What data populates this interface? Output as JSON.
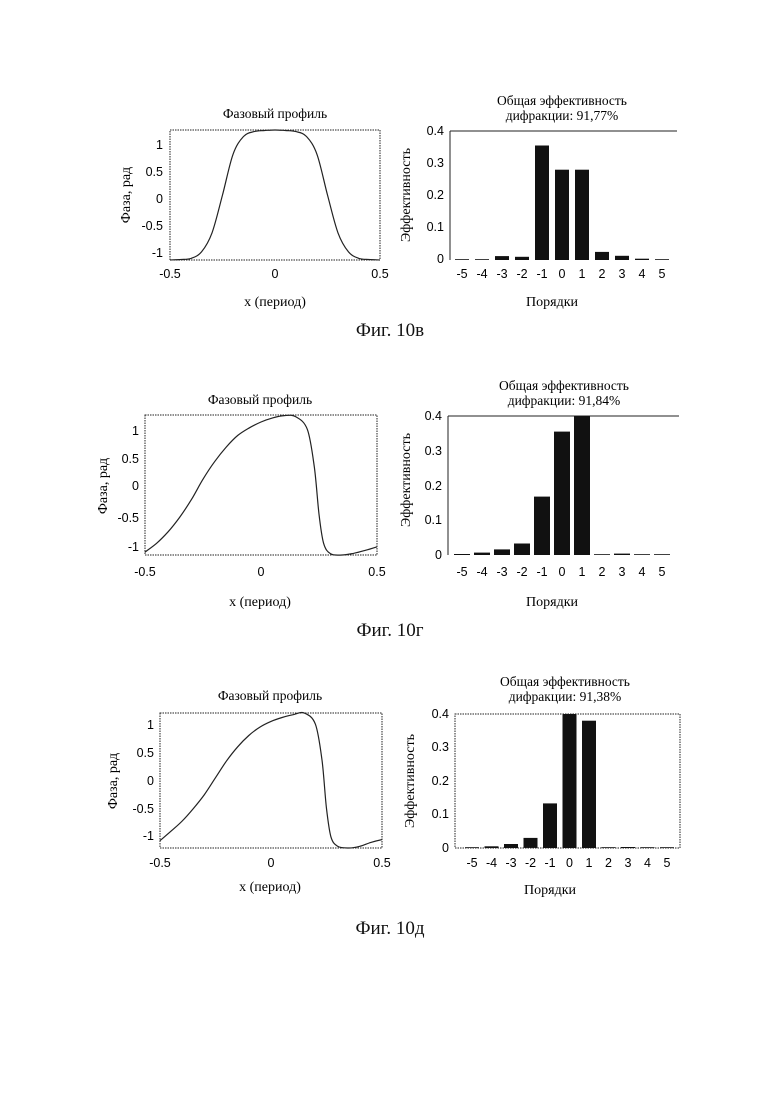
{
  "figures": [
    {
      "caption": "Фиг. 10в",
      "phase": {
        "title": "Фазовый профиль",
        "xlabel": "x (период)",
        "ylabel": "Фаза, рад",
        "xticks": [
          "-0.5",
          "0",
          "0.5"
        ],
        "yticks": [
          "1",
          "0.5",
          "0",
          "-0.5",
          "-1"
        ]
      },
      "efficiency": {
        "title_line1": "Общая эффективность",
        "title_line2": "дифракции: 91,77%",
        "xlabel": "Порядки",
        "ylabel": "Эффективность",
        "yticks": [
          "0.4",
          "0.3",
          "0.2",
          "0.1",
          "0"
        ],
        "xticks": [
          "-5",
          "-4",
          "-3",
          "-2",
          "-1",
          "0",
          "1",
          "2",
          "3",
          "4",
          "5"
        ]
      }
    },
    {
      "caption": "Фиг. 10г",
      "phase": {
        "title": "Фазовый профиль",
        "xlabel": "x (период)",
        "ylabel": "Фаза, рад",
        "xticks": [
          "-0.5",
          "0",
          "0.5"
        ],
        "yticks": [
          "1",
          "0.5",
          "0",
          "-0.5",
          "-1"
        ]
      },
      "efficiency": {
        "title_line1": "Общая эффективность",
        "title_line2": "дифракции: 91,84%",
        "xlabel": "Порядки",
        "ylabel": "Эффективность",
        "yticks": [
          "0.4",
          "0.3",
          "0.2",
          "0.1",
          "0"
        ],
        "xticks": [
          "-5",
          "-4",
          "-3",
          "-2",
          "-1",
          "0",
          "1",
          "2",
          "3",
          "4",
          "5"
        ]
      }
    },
    {
      "caption": "Фиг. 10д",
      "phase": {
        "title": "Фазовый профиль",
        "xlabel": "x (период)",
        "ylabel": "Фаза, рад",
        "xticks": [
          "-0.5",
          "0",
          "0.5"
        ],
        "yticks": [
          "1",
          "0.5",
          "0",
          "-0.5",
          "-1"
        ]
      },
      "efficiency": {
        "title_line1": "Общая эффективность",
        "title_line2": "дифракции: 91,38%",
        "xlabel": "Порядки",
        "ylabel": "Эффективность",
        "yticks": [
          "0.4",
          "0.3",
          "0.2",
          "0.1",
          "0"
        ],
        "xticks": [
          "-5",
          "-4",
          "-3",
          "-2",
          "-1",
          "0",
          "1",
          "2",
          "3",
          "4",
          "5"
        ]
      }
    }
  ],
  "chart_data": [
    {
      "type": "line",
      "title": "Фазовый профиль",
      "xlabel": "x (период)",
      "ylabel": "Фаза, рад",
      "xlim": [
        -0.5,
        0.5
      ],
      "ylim": [
        -1.2,
        1.2
      ],
      "x": [
        -0.5,
        -0.45,
        -0.4,
        -0.35,
        -0.3,
        -0.25,
        -0.2,
        -0.15,
        -0.1,
        -0.05,
        0,
        0.05,
        0.1,
        0.15,
        0.2,
        0.25,
        0.3,
        0.35,
        0.4,
        0.45,
        0.5
      ],
      "y": [
        -1.2,
        -1.19,
        -1.17,
        -1.05,
        -0.7,
        0.0,
        0.75,
        1.08,
        1.17,
        1.19,
        1.2,
        1.19,
        1.17,
        1.08,
        0.75,
        0.0,
        -0.7,
        -1.05,
        -1.17,
        -1.19,
        -1.2
      ]
    },
    {
      "type": "bar",
      "title": "Общая эффективность дифракции: 91,77%",
      "xlabel": "Порядки",
      "ylabel": "Эффективность",
      "ylim": [
        0,
        0.4
      ],
      "categories": [
        "-5",
        "-4",
        "-3",
        "-2",
        "-1",
        "0",
        "1",
        "2",
        "3",
        "4",
        "5"
      ],
      "values": [
        0.0,
        0.001,
        0.012,
        0.01,
        0.355,
        0.28,
        0.28,
        0.025,
        0.013,
        0.004,
        0.002
      ]
    },
    {
      "type": "line",
      "title": "Фазовый профиль",
      "xlabel": "x (период)",
      "ylabel": "Фаза, рад",
      "xlim": [
        -0.5,
        0.5
      ],
      "ylim": [
        -1.2,
        1.2
      ],
      "x": [
        -0.5,
        -0.45,
        -0.4,
        -0.35,
        -0.3,
        -0.25,
        -0.2,
        -0.15,
        -0.1,
        -0.05,
        0,
        0.05,
        0.1,
        0.15,
        0.2,
        0.23,
        0.25,
        0.27,
        0.3,
        0.35,
        0.4,
        0.45,
        0.5
      ],
      "y": [
        -1.15,
        -1.0,
        -0.8,
        -0.55,
        -0.25,
        0.1,
        0.4,
        0.65,
        0.85,
        0.98,
        1.08,
        1.15,
        1.19,
        1.17,
        0.95,
        0.3,
        -0.5,
        -1.0,
        -1.18,
        -1.2,
        -1.17,
        -1.12,
        -1.06
      ]
    },
    {
      "type": "bar",
      "title": "Общая эффективность дифракции: 91,84%",
      "xlabel": "Порядки",
      "ylabel": "Эффективность",
      "ylim": [
        0,
        0.4
      ],
      "categories": [
        "-5",
        "-4",
        "-3",
        "-2",
        "-1",
        "0",
        "1",
        "2",
        "3",
        "4",
        "5"
      ],
      "values": [
        0.003,
        0.007,
        0.016,
        0.033,
        0.168,
        0.355,
        0.4,
        0.0,
        0.004,
        0.0,
        0.0
      ]
    },
    {
      "type": "line",
      "title": "Фазовый профиль",
      "xlabel": "x (период)",
      "ylabel": "Фаза, рад",
      "xlim": [
        -0.5,
        0.5
      ],
      "ylim": [
        -1.2,
        1.2
      ],
      "x": [
        -0.5,
        -0.45,
        -0.4,
        -0.35,
        -0.3,
        -0.25,
        -0.2,
        -0.15,
        -0.1,
        -0.05,
        0,
        0.05,
        0.1,
        0.15,
        0.2,
        0.23,
        0.25,
        0.27,
        0.3,
        0.35,
        0.4,
        0.45,
        0.5
      ],
      "y": [
        -1.07,
        -0.9,
        -0.72,
        -0.5,
        -0.25,
        0.05,
        0.35,
        0.6,
        0.8,
        0.95,
        1.05,
        1.12,
        1.17,
        1.2,
        1.0,
        0.35,
        -0.5,
        -1.0,
        -1.17,
        -1.2,
        -1.17,
        -1.1,
        -1.05
      ]
    },
    {
      "type": "bar",
      "title": "Общая эффективность дифракции: 91,38%",
      "xlabel": "Порядки",
      "ylabel": "Эффективность",
      "ylim": [
        0,
        0.4
      ],
      "categories": [
        "-5",
        "-4",
        "-3",
        "-2",
        "-1",
        "0",
        "1",
        "2",
        "3",
        "4",
        "5"
      ],
      "values": [
        0.002,
        0.005,
        0.012,
        0.03,
        0.133,
        0.4,
        0.38,
        0.0,
        0.003,
        0.0,
        0.0
      ]
    }
  ]
}
